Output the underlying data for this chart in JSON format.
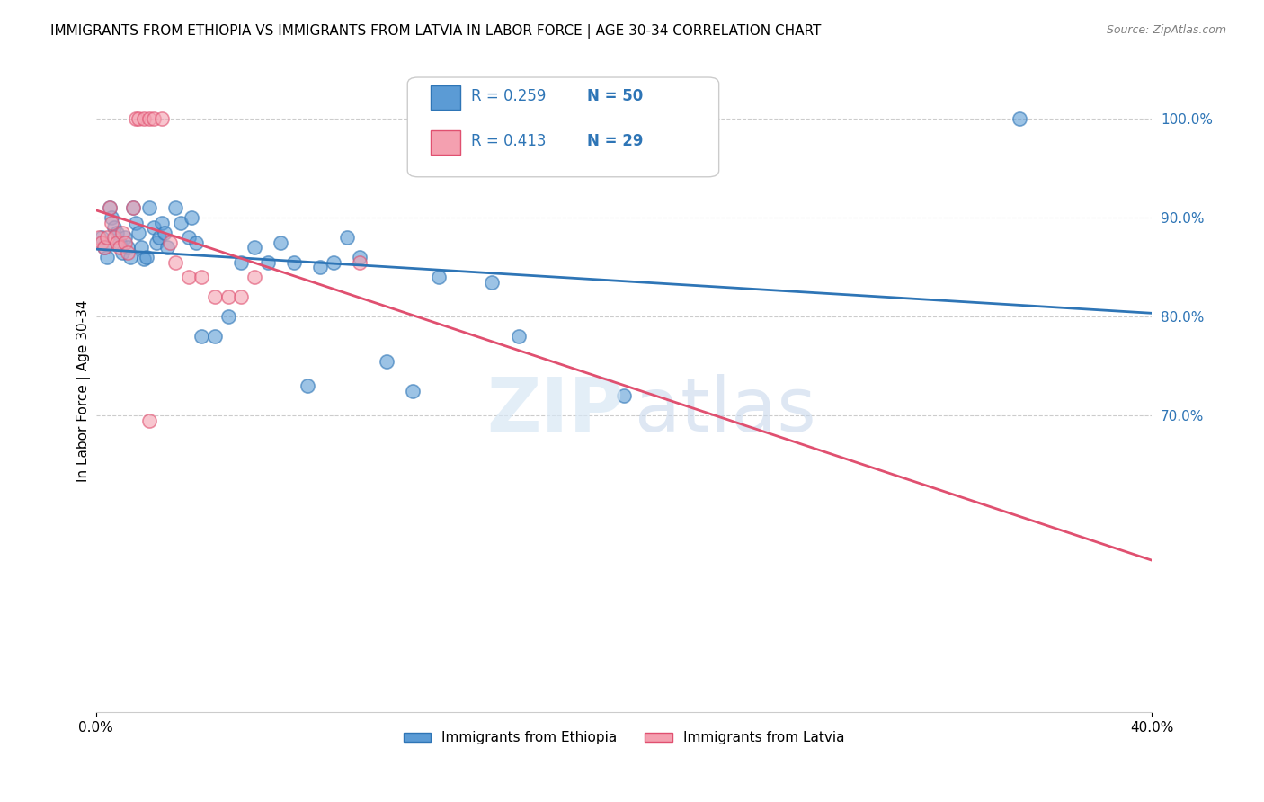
{
  "title": "IMMIGRANTS FROM ETHIOPIA VS IMMIGRANTS FROM LATVIA IN LABOR FORCE | AGE 30-34 CORRELATION CHART",
  "source": "Source: ZipAtlas.com",
  "ylabel": "In Labor Force | Age 30-34",
  "xlim": [
    0.0,
    0.4
  ],
  "ylim": [
    0.4,
    1.05
  ],
  "yticks_right": [
    0.7,
    0.8,
    0.9,
    1.0
  ],
  "yticklabels_right": [
    "70.0%",
    "80.0%",
    "90.0%",
    "100.0%"
  ],
  "legend_r1": "0.259",
  "legend_n1": "50",
  "legend_r2": "0.413",
  "legend_n2": "29",
  "legend_label1": "Immigrants from Ethiopia",
  "legend_label2": "Immigrants from Latvia",
  "blue_color": "#5B9BD5",
  "pink_color": "#F4A0B0",
  "blue_line_color": "#2E75B6",
  "pink_line_color": "#E05070",
  "ethiopia_x": [
    0.002,
    0.003,
    0.004,
    0.005,
    0.006,
    0.007,
    0.008,
    0.009,
    0.01,
    0.011,
    0.012,
    0.013,
    0.014,
    0.015,
    0.016,
    0.017,
    0.018,
    0.019,
    0.02,
    0.022,
    0.023,
    0.024,
    0.025,
    0.026,
    0.027,
    0.03,
    0.032,
    0.035,
    0.036,
    0.038,
    0.04,
    0.045,
    0.05,
    0.055,
    0.06,
    0.065,
    0.07,
    0.075,
    0.08,
    0.085,
    0.09,
    0.095,
    0.1,
    0.11,
    0.12,
    0.13,
    0.15,
    0.16,
    0.2,
    0.35
  ],
  "ethiopia_y": [
    0.88,
    0.87,
    0.86,
    0.91,
    0.9,
    0.89,
    0.885,
    0.875,
    0.865,
    0.88,
    0.87,
    0.86,
    0.91,
    0.895,
    0.885,
    0.87,
    0.858,
    0.86,
    0.91,
    0.89,
    0.875,
    0.88,
    0.895,
    0.885,
    0.87,
    0.91,
    0.895,
    0.88,
    0.9,
    0.875,
    0.78,
    0.78,
    0.8,
    0.855,
    0.87,
    0.855,
    0.875,
    0.855,
    0.73,
    0.85,
    0.855,
    0.88,
    0.86,
    0.755,
    0.725,
    0.84,
    0.835,
    0.78,
    0.72,
    1.0
  ],
  "latvia_x": [
    0.001,
    0.002,
    0.003,
    0.004,
    0.005,
    0.006,
    0.007,
    0.008,
    0.009,
    0.01,
    0.011,
    0.012,
    0.014,
    0.015,
    0.016,
    0.018,
    0.02,
    0.022,
    0.025,
    0.028,
    0.03,
    0.035,
    0.04,
    0.045,
    0.05,
    0.055,
    0.06,
    0.1,
    0.02
  ],
  "latvia_y": [
    0.88,
    0.875,
    0.87,
    0.88,
    0.91,
    0.895,
    0.88,
    0.875,
    0.87,
    0.885,
    0.875,
    0.865,
    0.91,
    1.0,
    1.0,
    1.0,
    1.0,
    1.0,
    1.0,
    0.875,
    0.855,
    0.84,
    0.84,
    0.82,
    0.82,
    0.82,
    0.84,
    0.855,
    0.695
  ]
}
